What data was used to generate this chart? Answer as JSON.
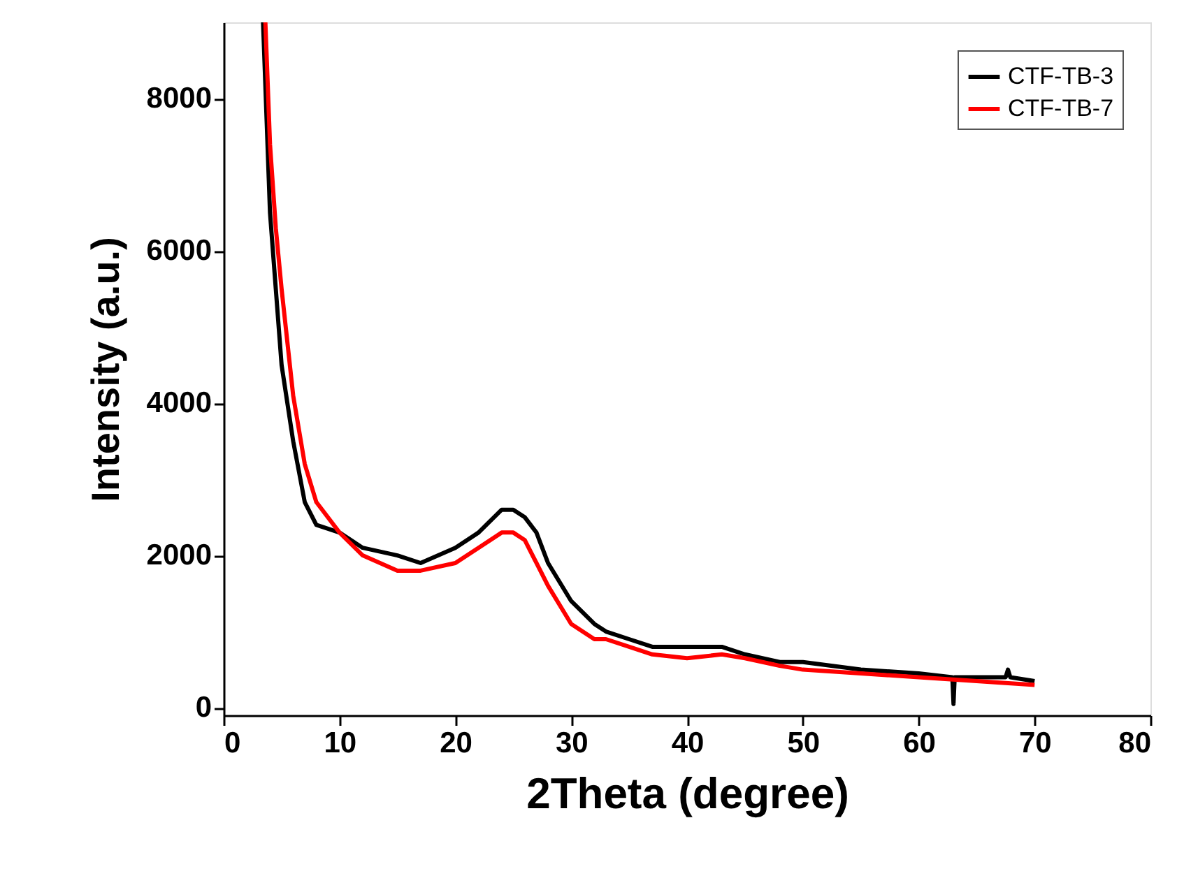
{
  "chart_data": {
    "type": "line",
    "xlabel": "2Theta (degree)",
    "ylabel": "Intensity (a.u.)",
    "xlim": [
      0,
      80
    ],
    "ylim": [
      -100,
      9000
    ],
    "xticks": [
      0,
      10,
      20,
      30,
      40,
      50,
      60,
      70,
      80
    ],
    "yticks": [
      0,
      2000,
      4000,
      6000,
      8000
    ],
    "grid": false,
    "legend": "top right",
    "marker": "none",
    "line_style": "solid",
    "series": [
      {
        "name": "CTF-TB-3",
        "color": "#000000",
        "x": [
          3.4,
          4,
          4.5,
          5,
          6,
          7,
          8,
          10,
          12,
          15,
          17,
          20,
          22,
          24,
          25,
          26,
          27,
          28,
          30,
          32,
          33,
          35,
          37,
          40,
          43,
          45,
          48,
          50,
          55,
          60,
          62.9,
          63,
          63.1,
          65,
          67.5,
          67.7,
          67.9,
          70
        ],
        "values": [
          9000,
          6500,
          5500,
          4500,
          3500,
          2700,
          2400,
          2300,
          2100,
          2000,
          1900,
          2100,
          2300,
          2600,
          2600,
          2500,
          2300,
          1900,
          1400,
          1100,
          1000,
          900,
          800,
          800,
          800,
          700,
          600,
          600,
          500,
          450,
          400,
          50,
          400,
          400,
          400,
          500,
          400,
          350
        ]
      },
      {
        "name": "CTF-TB-7",
        "color": "#ff0000",
        "x": [
          3.6,
          4,
          4.5,
          5,
          6,
          7,
          8,
          10,
          12,
          15,
          17,
          20,
          22,
          24,
          25,
          26,
          27,
          28,
          30,
          32,
          33,
          35,
          37,
          40,
          43,
          45,
          48,
          50,
          55,
          60,
          65,
          70
        ],
        "values": [
          9000,
          7400,
          6300,
          5500,
          4100,
          3200,
          2700,
          2300,
          2000,
          1800,
          1800,
          1900,
          2100,
          2300,
          2300,
          2200,
          1900,
          1600,
          1100,
          900,
          900,
          800,
          700,
          650,
          700,
          650,
          550,
          500,
          450,
          400,
          350,
          300
        ]
      }
    ]
  }
}
